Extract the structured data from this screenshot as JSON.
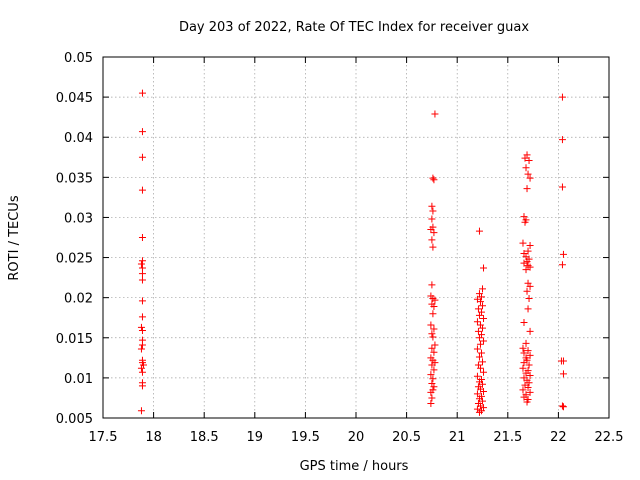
{
  "chart_data": {
    "type": "scatter",
    "title": "Day 203 of 2022, Rate Of TEC Index for receiver guax",
    "xlabel": "GPS time / hours",
    "ylabel": "ROTI / TECUs",
    "xlim": [
      17.5,
      22.5
    ],
    "ylim": [
      0.005,
      0.05
    ],
    "x_ticks": [
      "17.5",
      "18",
      "18.5",
      "19",
      "19.5",
      "20",
      "20.5",
      "21",
      "21.5",
      "22",
      "22.5"
    ],
    "y_ticks": [
      "0.005",
      "0.01",
      "0.015",
      "0.02",
      "0.025",
      "0.03",
      "0.035",
      "0.04",
      "0.045",
      "0.05"
    ],
    "grid": true,
    "marker": "+",
    "color": "#ff0000",
    "series": [
      {
        "points": [
          [
            17.89,
            0.0455
          ],
          [
            17.89,
            0.0407
          ],
          [
            17.89,
            0.0375
          ],
          [
            17.89,
            0.0334
          ],
          [
            17.89,
            0.0275
          ],
          [
            17.89,
            0.0246
          ],
          [
            17.88,
            0.0242
          ],
          [
            17.89,
            0.0237
          ],
          [
            17.89,
            0.023
          ],
          [
            17.89,
            0.0222
          ],
          [
            17.89,
            0.0196
          ],
          [
            17.89,
            0.0176
          ],
          [
            17.88,
            0.0163
          ],
          [
            17.89,
            0.0159
          ],
          [
            17.89,
            0.0147
          ],
          [
            17.89,
            0.0141
          ],
          [
            17.88,
            0.0136
          ],
          [
            17.89,
            0.0122
          ],
          [
            17.89,
            0.0119
          ],
          [
            17.9,
            0.0116
          ],
          [
            17.88,
            0.0112
          ],
          [
            17.89,
            0.0107
          ],
          [
            17.89,
            0.0094
          ],
          [
            17.89,
            0.009
          ],
          [
            17.88,
            0.0059
          ],
          [
            20.78,
            0.0429
          ],
          [
            20.76,
            0.0349
          ],
          [
            20.77,
            0.0347
          ],
          [
            20.75,
            0.0314
          ],
          [
            20.76,
            0.0308
          ],
          [
            20.75,
            0.0298
          ],
          [
            20.76,
            0.0288
          ],
          [
            20.74,
            0.0285
          ],
          [
            20.77,
            0.0281
          ],
          [
            20.75,
            0.0272
          ],
          [
            20.76,
            0.0263
          ],
          [
            20.75,
            0.0216
          ],
          [
            20.74,
            0.0202
          ],
          [
            20.76,
            0.0199
          ],
          [
            20.78,
            0.0197
          ],
          [
            20.75,
            0.0192
          ],
          [
            20.77,
            0.0189
          ],
          [
            20.76,
            0.018
          ],
          [
            20.74,
            0.0166
          ],
          [
            20.77,
            0.0161
          ],
          [
            20.75,
            0.0155
          ],
          [
            20.76,
            0.0151
          ],
          [
            20.78,
            0.0141
          ],
          [
            20.75,
            0.0137
          ],
          [
            20.77,
            0.0132
          ],
          [
            20.74,
            0.0125
          ],
          [
            20.76,
            0.0122
          ],
          [
            20.78,
            0.0119
          ],
          [
            20.75,
            0.0116
          ],
          [
            20.77,
            0.011
          ],
          [
            20.74,
            0.0104
          ],
          [
            20.76,
            0.0099
          ],
          [
            20.75,
            0.0093
          ],
          [
            20.77,
            0.0089
          ],
          [
            20.76,
            0.0085
          ],
          [
            20.74,
            0.0082
          ],
          [
            20.75,
            0.0075
          ],
          [
            20.74,
            0.0068
          ],
          [
            21.22,
            0.0283
          ],
          [
            21.26,
            0.0237
          ],
          [
            21.25,
            0.0211
          ],
          [
            21.22,
            0.0205
          ],
          [
            21.24,
            0.0201
          ],
          [
            21.2,
            0.0198
          ],
          [
            21.23,
            0.0195
          ],
          [
            21.25,
            0.019
          ],
          [
            21.21,
            0.0186
          ],
          [
            21.24,
            0.0182
          ],
          [
            21.22,
            0.0178
          ],
          [
            21.26,
            0.0174
          ],
          [
            21.2,
            0.017
          ],
          [
            21.23,
            0.0166
          ],
          [
            21.25,
            0.0162
          ],
          [
            21.21,
            0.0158
          ],
          [
            21.24,
            0.0154
          ],
          [
            21.22,
            0.015
          ],
          [
            21.26,
            0.0146
          ],
          [
            21.23,
            0.0142
          ],
          [
            21.2,
            0.0136
          ],
          [
            21.24,
            0.0131
          ],
          [
            21.22,
            0.0126
          ],
          [
            21.25,
            0.012
          ],
          [
            21.21,
            0.0116
          ],
          [
            21.23,
            0.0112
          ],
          [
            21.26,
            0.0107
          ],
          [
            21.2,
            0.0102
          ],
          [
            21.24,
            0.0098
          ],
          [
            21.22,
            0.0095
          ],
          [
            21.25,
            0.0092
          ],
          [
            21.21,
            0.0089
          ],
          [
            21.23,
            0.0086
          ],
          [
            21.26,
            0.0083
          ],
          [
            21.2,
            0.008
          ],
          [
            21.24,
            0.0077
          ],
          [
            21.22,
            0.0074
          ],
          [
            21.25,
            0.0071
          ],
          [
            21.21,
            0.0068
          ],
          [
            21.23,
            0.0065
          ],
          [
            21.26,
            0.0063
          ],
          [
            21.2,
            0.0061
          ],
          [
            21.24,
            0.0059
          ],
          [
            21.22,
            0.0057
          ],
          [
            21.69,
            0.0378
          ],
          [
            21.67,
            0.0374
          ],
          [
            21.71,
            0.0371
          ],
          [
            21.68,
            0.0362
          ],
          [
            21.7,
            0.0354
          ],
          [
            21.72,
            0.0349
          ],
          [
            21.69,
            0.0336
          ],
          [
            21.66,
            0.0301
          ],
          [
            21.68,
            0.0297
          ],
          [
            21.67,
            0.0294
          ],
          [
            21.65,
            0.0268
          ],
          [
            21.72,
            0.0265
          ],
          [
            21.7,
            0.0258
          ],
          [
            21.66,
            0.0255
          ],
          [
            21.68,
            0.0251
          ],
          [
            21.71,
            0.0248
          ],
          [
            21.69,
            0.0245
          ],
          [
            21.66,
            0.0243
          ],
          [
            21.7,
            0.024
          ],
          [
            21.72,
            0.0238
          ],
          [
            21.68,
            0.0235
          ],
          [
            21.7,
            0.0218
          ],
          [
            21.72,
            0.0214
          ],
          [
            21.69,
            0.0208
          ],
          [
            21.71,
            0.0199
          ],
          [
            21.7,
            0.0186
          ],
          [
            21.66,
            0.0169
          ],
          [
            21.72,
            0.0158
          ],
          [
            21.68,
            0.0143
          ],
          [
            21.65,
            0.0137
          ],
          [
            21.7,
            0.0134
          ],
          [
            21.66,
            0.0131
          ],
          [
            21.72,
            0.0128
          ],
          [
            21.68,
            0.0125
          ],
          [
            21.69,
            0.0122
          ],
          [
            21.66,
            0.0119
          ],
          [
            21.71,
            0.0116
          ],
          [
            21.65,
            0.0112
          ],
          [
            21.7,
            0.0109
          ],
          [
            21.68,
            0.0106
          ],
          [
            21.72,
            0.0103
          ],
          [
            21.66,
            0.01
          ],
          [
            21.69,
            0.0097
          ],
          [
            21.71,
            0.0094
          ],
          [
            21.67,
            0.0091
          ],
          [
            21.7,
            0.0088
          ],
          [
            21.65,
            0.0085
          ],
          [
            21.72,
            0.0082
          ],
          [
            21.68,
            0.0079
          ],
          [
            21.66,
            0.0076
          ],
          [
            21.7,
            0.0073
          ],
          [
            21.69,
            0.007
          ],
          [
            22.04,
            0.045
          ],
          [
            22.04,
            0.0397
          ],
          [
            22.04,
            0.0338
          ],
          [
            22.05,
            0.0254
          ],
          [
            22.04,
            0.0241
          ],
          [
            22.05,
            0.0121
          ],
          [
            22.03,
            0.0121
          ],
          [
            22.05,
            0.0105
          ],
          [
            22.04,
            0.0065
          ],
          [
            22.05,
            0.0064
          ]
        ]
      }
    ]
  }
}
